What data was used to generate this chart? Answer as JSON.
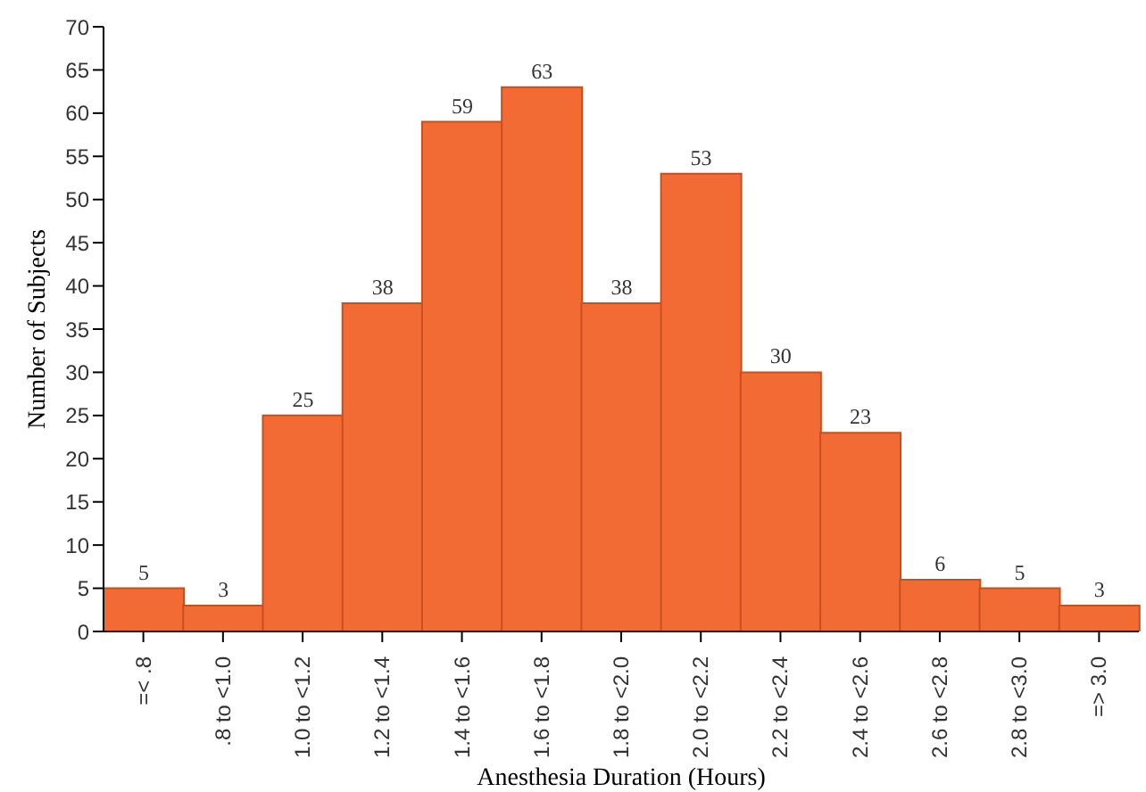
{
  "chart_data": {
    "type": "bar",
    "xlabel": "Anesthesia Duration (Hours)",
    "ylabel": "Number of Subjects",
    "categories": [
      "=< .8",
      ".8 to <1.0",
      "1.0 to <1.2",
      "1.2 to <1.4",
      "1.4 to <1.6",
      "1.6 to <1.8",
      "1.8 to <2.0",
      "2.0 to <2.2",
      "2.2 to <2.4",
      "2.4 to <2.6",
      "2.6 to <2.8",
      "2.8 to <3.0",
      "=> 3.0"
    ],
    "values": [
      5,
      3,
      25,
      38,
      59,
      63,
      38,
      53,
      30,
      23,
      6,
      5,
      3
    ],
    "color": "#f26b35",
    "ylim": [
      0,
      70
    ],
    "yticks": [
      0,
      5,
      10,
      15,
      20,
      25,
      30,
      35,
      40,
      45,
      50,
      55,
      60,
      65,
      70
    ],
    "grid": false,
    "data_labels": true
  }
}
